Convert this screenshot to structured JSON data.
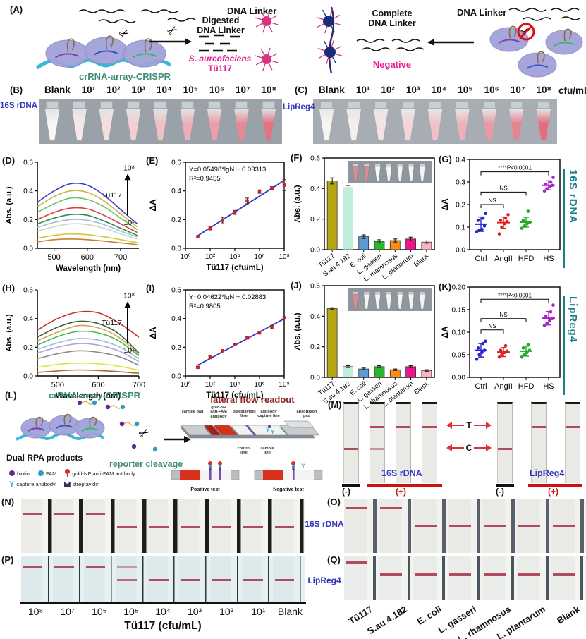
{
  "colors": {
    "magenta": "#e61c8e",
    "label_blue": "#3434bb",
    "teal": "#17808c",
    "crispr_green": "#3f8b74",
    "lf_title_red": "#8b1f1f",
    "arrow_red": "#e03030",
    "line_red": "#b24a5e"
  },
  "panel_a": {
    "label": "(A)",
    "dna_linker_left": "DNA Linker",
    "digested_line1": "Digested",
    "digested_line2": "DNA Linker",
    "positive_line1": "S. aureofaciens",
    "positive_line2": "Tü117",
    "crispr_label": "crRNA-array-CRISPR",
    "complete_line1": "Complete",
    "complete_line2": "DNA Linker",
    "negative_label": "Negative",
    "dna_linker_right": "DNA Linker"
  },
  "panel_b": {
    "label": "(B)",
    "side_label": "16S rDNA",
    "headers": [
      "Blank",
      "10¹",
      "10²",
      "10³",
      "10⁴",
      "10⁵",
      "10⁶",
      "10⁷",
      "10⁸"
    ],
    "tube_levels": [
      0,
      0.1,
      0.18,
      0.28,
      0.4,
      0.52,
      0.64,
      0.8,
      0.97
    ]
  },
  "panel_c": {
    "label": "(C)",
    "side_label": "LipReg4",
    "headers": [
      "Blank",
      "10¹",
      "10²",
      "10³",
      "10⁴",
      "10⁵",
      "10⁶",
      "10⁷",
      "10⁸"
    ],
    "unit": "cfu/mL",
    "tube_levels": [
      0,
      0.06,
      0.14,
      0.24,
      0.38,
      0.5,
      0.68,
      0.84,
      1.0
    ]
  },
  "right_labels": [
    "16S rDNA",
    "LipReg4"
  ],
  "chart_data": [
    {
      "panel": "D",
      "label": "(D)",
      "type": "line",
      "xlabel": "Wavelength (nm)",
      "ylabel": "Abs. (a.u.)",
      "xlim": [
        450,
        755
      ],
      "ylim": [
        0,
        0.6
      ],
      "xticks": [
        500,
        600,
        700
      ],
      "yticks": [
        0,
        0.2,
        0.4,
        0.6
      ],
      "x": [
        450,
        500,
        550,
        600,
        650,
        700,
        750
      ],
      "series": [
        {
          "color": "#3c3cc8",
          "values": [
            0.32,
            0.4,
            0.45,
            0.44,
            0.37,
            0.27,
            0.17
          ]
        },
        {
          "color": "#c9b445",
          "values": [
            0.29,
            0.36,
            0.4,
            0.39,
            0.33,
            0.24,
            0.15
          ]
        },
        {
          "color": "#6cc46c",
          "values": [
            0.25,
            0.31,
            0.35,
            0.34,
            0.29,
            0.21,
            0.13
          ]
        },
        {
          "color": "#d94040",
          "values": [
            0.2,
            0.25,
            0.28,
            0.275,
            0.23,
            0.17,
            0.11
          ]
        },
        {
          "color": "#2e8b57",
          "values": [
            0.17,
            0.21,
            0.235,
            0.23,
            0.19,
            0.14,
            0.09
          ]
        },
        {
          "color": "#a8bcd8",
          "values": [
            0.145,
            0.18,
            0.2,
            0.195,
            0.165,
            0.12,
            0.08
          ]
        },
        {
          "color": "#c8d8c4",
          "values": [
            0.12,
            0.15,
            0.17,
            0.165,
            0.14,
            0.1,
            0.065
          ]
        },
        {
          "color": "#d4c832",
          "values": [
            0.07,
            0.09,
            0.1,
            0.095,
            0.08,
            0.06,
            0.04
          ]
        },
        {
          "color": "#c87f32",
          "values": [
            0.045,
            0.06,
            0.065,
            0.06,
            0.05,
            0.038,
            0.025
          ]
        }
      ],
      "arrow": {
        "top": "10⁸",
        "bottom": "10¹",
        "label": "Tü117"
      }
    },
    {
      "panel": "E",
      "label": "(E)",
      "type": "scatter-fit",
      "equation": "Y=0.05498*lgN + 0.03313",
      "r_squared": "R²=0.9455",
      "xlabel": "Tü117 (cfu/mL)",
      "ylabel": "ΔA",
      "ylim": [
        0,
        0.6
      ],
      "yticks": [
        0,
        0.2,
        0.4,
        0.6
      ],
      "xtick_exponents": [
        0,
        2,
        4,
        6,
        8
      ],
      "xtick_labels": [
        "10⁰",
        "10²",
        "10⁴",
        "10⁶",
        "10⁸"
      ],
      "x_exponents": [
        1,
        2,
        3,
        4,
        5,
        6,
        7,
        8
      ],
      "y": [
        0.08,
        0.14,
        0.195,
        0.25,
        0.33,
        0.395,
        0.42,
        0.44
      ],
      "yerr": [
        0.008,
        0.012,
        0.018,
        0.014,
        0.02,
        0.012,
        0.01,
        0.038
      ],
      "fit": {
        "slope": 0.05498,
        "intercept": 0.03313
      }
    },
    {
      "panel": "F",
      "label": "(F)",
      "type": "bar",
      "ylabel": "Abs. (a.u.)",
      "ylim": [
        0,
        0.6
      ],
      "yticks": [
        0,
        0.2,
        0.4,
        0.6
      ],
      "categories": [
        "Tü117",
        "S.au 4.182",
        "E. coli",
        "L. gasseri",
        "L. rhamnosus",
        "L. plantarum",
        "Blank"
      ],
      "values": [
        0.45,
        0.405,
        0.085,
        0.055,
        0.06,
        0.07,
        0.05
      ],
      "errors": [
        0.02,
        0.015,
        0.012,
        0.01,
        0.01,
        0.012,
        0.008
      ],
      "colors": [
        "#b3a514",
        "#bfeede",
        "#5b9bd5",
        "#2db52d",
        "#ff8c1a",
        "#f0148c",
        "#ffb3c1"
      ],
      "inset_tubes": [
        "#d98c96",
        "#d98c96",
        "#f7f5f2",
        "#f7f5f2",
        "#f7f5f2",
        "#f7f5f2",
        "#f7f5f2"
      ]
    },
    {
      "panel": "G",
      "label": "(G)",
      "type": "dotplot",
      "ylabel": "ΔA",
      "ylim": [
        0,
        0.4
      ],
      "yticks": [
        0,
        0.1,
        0.2,
        0.3,
        0.4
      ],
      "ydec": 1,
      "categories": [
        "Ctrl",
        "AngII",
        "HFD",
        "HS"
      ],
      "colors": [
        "#2525cc",
        "#dd2222",
        "#22aa22",
        "#aa22cc"
      ],
      "points": [
        [
          0.08,
          0.085,
          0.09,
          0.105,
          0.13,
          0.14,
          0.16
        ],
        [
          0.07,
          0.1,
          0.115,
          0.125,
          0.13,
          0.14,
          0.155
        ],
        [
          0.095,
          0.105,
          0.115,
          0.12,
          0.13,
          0.17
        ],
        [
          0.26,
          0.27,
          0.28,
          0.285,
          0.29,
          0.3,
          0.32
        ]
      ],
      "means": [
        0.113,
        0.12,
        0.122,
        0.285
      ],
      "sd": [
        0.032,
        0.025,
        0.022,
        0.02
      ],
      "sig": [
        {
          "from": 0,
          "to": 1,
          "label": "NS",
          "y": 0.2
        },
        {
          "from": 0,
          "to": 2,
          "label": "NS",
          "y": 0.255
        },
        {
          "from": 0,
          "to": 3,
          "label": "****P<0.0001",
          "y": 0.345
        }
      ]
    },
    {
      "panel": "H",
      "label": "(H)",
      "type": "line",
      "xlabel": "Wavelength (nm)",
      "ylabel": "Abs. (a.u.)",
      "xlim": [
        450,
        700
      ],
      "ylim": [
        0,
        0.6
      ],
      "xticks": [
        500,
        600,
        700
      ],
      "yticks": [
        0,
        0.2,
        0.4,
        0.6
      ],
      "x": [
        450,
        500,
        550,
        600,
        650,
        700
      ],
      "series": [
        {
          "color": "#c03030",
          "values": [
            0.32,
            0.4,
            0.445,
            0.44,
            0.37,
            0.27
          ]
        },
        {
          "color": "#3a5f3a",
          "values": [
            0.27,
            0.34,
            0.38,
            0.365,
            0.295,
            0.16
          ]
        },
        {
          "color": "#d8a060",
          "values": [
            0.245,
            0.305,
            0.35,
            0.335,
            0.27,
            0.15
          ]
        },
        {
          "color": "#44bb44",
          "values": [
            0.215,
            0.275,
            0.31,
            0.3,
            0.245,
            0.14
          ]
        },
        {
          "color": "#9ebede",
          "values": [
            0.185,
            0.23,
            0.26,
            0.25,
            0.205,
            0.12
          ]
        },
        {
          "color": "#b4a4d4",
          "values": [
            0.16,
            0.2,
            0.225,
            0.215,
            0.175,
            0.1
          ]
        },
        {
          "color": "#8a8a8a",
          "values": [
            0.12,
            0.155,
            0.175,
            0.165,
            0.135,
            0.075
          ]
        },
        {
          "color": "#e2e23c",
          "values": [
            0.06,
            0.08,
            0.09,
            0.085,
            0.068,
            0.04
          ]
        },
        {
          "color": "#b06830",
          "values": [
            0.025,
            0.035,
            0.042,
            0.038,
            0.03,
            0.018
          ]
        }
      ],
      "arrow": {
        "top": "10⁸",
        "bottom": "10¹",
        "label": "Tü117"
      }
    },
    {
      "panel": "I",
      "label": "(I)",
      "type": "scatter-fit",
      "equation": "Y=0.04622*lgN + 0.02883",
      "r_squared": "R²=0.9805",
      "xlabel": "Tü117 (cfu/mL)",
      "ylabel": "ΔA",
      "ylim": [
        0,
        0.6
      ],
      "yticks": [
        0,
        0.2,
        0.4,
        0.6
      ],
      "xtick_exponents": [
        0,
        2,
        4,
        6,
        8
      ],
      "xtick_labels": [
        "10⁰",
        "10²",
        "10⁴",
        "10⁶",
        "10⁸"
      ],
      "x_exponents": [
        1,
        2,
        3,
        4,
        5,
        6,
        7,
        8
      ],
      "y": [
        0.06,
        0.13,
        0.175,
        0.22,
        0.265,
        0.3,
        0.34,
        0.405
      ],
      "yerr": [
        0.006,
        0.01,
        0.008,
        0.008,
        0.008,
        0.008,
        0.012,
        0.008
      ],
      "fit": {
        "slope": 0.04622,
        "intercept": 0.02883
      }
    },
    {
      "panel": "J",
      "label": "(J)",
      "type": "bar",
      "ylabel": "Abs. (a.u.)",
      "ylim": [
        0,
        0.6
      ],
      "yticks": [
        0,
        0.2,
        0.4,
        0.6
      ],
      "categories": [
        "Tü117",
        "S.au 4.182",
        "E. coli",
        "L. gasseri",
        "L. rhamnosus",
        "L. plantarum",
        "Blank"
      ],
      "values": [
        0.45,
        0.07,
        0.055,
        0.07,
        0.05,
        0.07,
        0.045
      ],
      "errors": [
        0.006,
        0.006,
        0.006,
        0.006,
        0.005,
        0.006,
        0.005
      ],
      "colors": [
        "#b3a514",
        "#bfeede",
        "#5b9bd5",
        "#2db52d",
        "#ff8c1a",
        "#f0148c",
        "#ffb3c1"
      ],
      "inset_tubes": [
        "#d98c96",
        "#f7f5f2",
        "#f7f5f2",
        "#f7f5f2",
        "#f7f5f2",
        "#f7f5f2",
        "#f7f5f2"
      ]
    },
    {
      "panel": "K",
      "label": "(K)",
      "type": "dotplot",
      "ylabel": "ΔA",
      "ylim": [
        0,
        0.2
      ],
      "yticks": [
        0,
        0.05,
        0.1,
        0.15,
        0.2
      ],
      "ydec": 2,
      "categories": [
        "Ctrl",
        "AngII",
        "HFD",
        "HS"
      ],
      "colors": [
        "#2525cc",
        "#dd2222",
        "#22aa22",
        "#aa22cc"
      ],
      "points": [
        [
          0.04,
          0.05,
          0.055,
          0.06,
          0.065,
          0.075,
          0.08
        ],
        [
          0.045,
          0.05,
          0.055,
          0.058,
          0.06,
          0.07
        ],
        [
          0.045,
          0.05,
          0.055,
          0.06,
          0.065,
          0.072
        ],
        [
          0.115,
          0.12,
          0.125,
          0.13,
          0.135,
          0.145,
          0.16
        ]
      ],
      "means": [
        0.06,
        0.056,
        0.058,
        0.131
      ],
      "sd": [
        0.015,
        0.01,
        0.011,
        0.015
      ],
      "sig": [
        {
          "from": 0,
          "to": 1,
          "label": "NS",
          "y": 0.105
        },
        {
          "from": 0,
          "to": 2,
          "label": "NS",
          "y": 0.13
        },
        {
          "from": 0,
          "to": 3,
          "label": "****P<0.0001",
          "y": 0.173
        }
      ]
    }
  ],
  "panel_l": {
    "label": "(L)",
    "crispr_title": "crRNA-array-CRISPR",
    "dual_rpa_label": "Dual RPA products",
    "reporter_cleavage_label": "reporter cleavage",
    "lf_title": "lateral flow readout",
    "pad_labels": [
      "sample pad",
      "gold-NP anti-FAM antibody",
      "streptavidin line",
      "antibody capture line",
      "absorption pad"
    ],
    "line_labels": [
      "control line",
      "sample line"
    ],
    "test_labels": [
      "Positive test",
      "Negative test"
    ],
    "legend": [
      {
        "name": "biotin-icon",
        "label": "biotin"
      },
      {
        "name": "fam-icon",
        "label": "FAM"
      },
      {
        "name": "gold-np-anti-fam-antibody-icon",
        "label": "gold-NP anti-FAM antibody"
      },
      {
        "name": "capture-antibody-icon",
        "label": "capture antibody"
      },
      {
        "name": "streptavidin-icon",
        "label": "streptavidin"
      }
    ]
  },
  "panel_m": {
    "label": "(M)",
    "t_label": "T",
    "c_label": "C",
    "groups": [
      {
        "name": "16S rDNA",
        "neg_label": "(-)",
        "pos_label": "(+)",
        "strips": [
          {
            "c": 1
          },
          {
            "t": 1,
            "c": 0.55
          },
          {
            "t": 1
          },
          {
            "t": 1
          }
        ]
      },
      {
        "name": "LipReg4",
        "neg_label": "(-)",
        "pos_label": "(+)",
        "strips": [
          {
            "c": 1
          },
          {
            "t": 1
          },
          {
            "t": 1
          }
        ]
      }
    ]
  },
  "panel_n": {
    "label": "(N)",
    "strips": [
      {
        "t": 1
      },
      {
        "t": 1
      },
      {
        "t": 1
      },
      {
        "c": 1
      },
      {
        "c": 1
      },
      {
        "c": 1
      },
      {
        "c": 1
      },
      {
        "c": 1
      },
      {
        "c": 1
      }
    ]
  },
  "panel_o": {
    "label": "(O)",
    "strips": [
      {
        "t": 1
      },
      {
        "t": 1
      },
      {
        "c": 1
      },
      {
        "c": 1
      },
      {
        "c": 1
      },
      {
        "c": 1
      },
      {
        "c": 1
      }
    ]
  },
  "mid_label_no": "16S rDNA",
  "panel_p": {
    "label": "(P)",
    "strips": [
      {
        "t": 1
      },
      {
        "t": 1
      },
      {
        "t": 1
      },
      {
        "t": 0.5,
        "c": 0.8
      },
      {
        "c": 1
      },
      {
        "c": 1
      },
      {
        "c": 1
      },
      {
        "c": 1
      },
      {
        "c": 1
      }
    ]
  },
  "panel_q": {
    "label": "(Q)",
    "strips": [
      {
        "t": 1
      },
      {
        "c": 1
      },
      {
        "c": 1
      },
      {
        "c": 1
      },
      {
        "c": 1
      },
      {
        "c": 1
      },
      {
        "c": 1
      }
    ]
  },
  "mid_label_pq": "LipReg4",
  "bottom_axis": {
    "ticks": [
      "10⁸",
      "10⁷",
      "10⁶",
      "10⁵",
      "10⁴",
      "10³",
      "10²",
      "10¹",
      "Blank"
    ],
    "title": "Tü117 (cfu/mL)"
  },
  "bottom_labels_q": [
    "Tü117",
    "S.au 4.182",
    "E. coli",
    "L. gasseri",
    "L. rhamnosus",
    "L. plantarum",
    "Blank"
  ]
}
